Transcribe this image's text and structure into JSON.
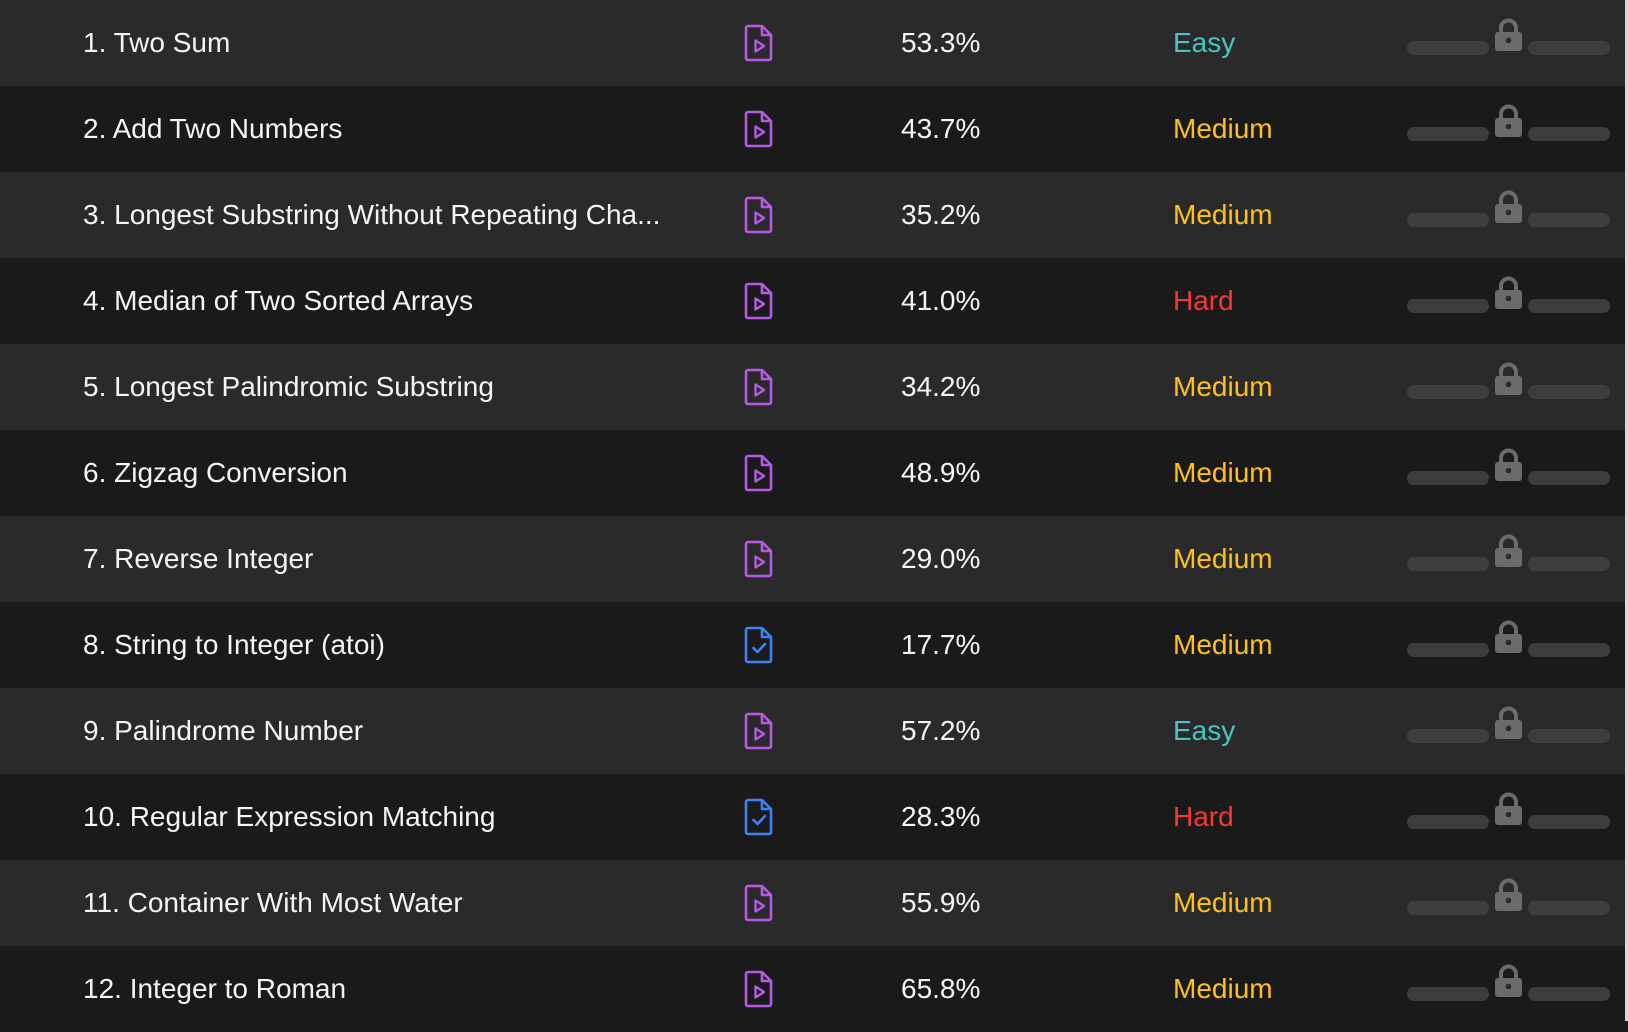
{
  "colors": {
    "easy": "#46c6c2",
    "medium": "#ffc01e",
    "hard": "#f63737",
    "video_solution_icon": "#b65ae6",
    "article_solution_icon": "#3b82f6",
    "lock_icon": "#6b6b6b"
  },
  "problems": [
    {
      "title": "1. Two Sum",
      "solution_icon": "video-solution-icon",
      "acceptance": "53.3%",
      "difficulty": "Easy"
    },
    {
      "title": "2. Add Two Numbers",
      "solution_icon": "video-solution-icon",
      "acceptance": "43.7%",
      "difficulty": "Medium"
    },
    {
      "title": "3. Longest Substring Without Repeating Cha...",
      "solution_icon": "video-solution-icon",
      "acceptance": "35.2%",
      "difficulty": "Medium"
    },
    {
      "title": "4. Median of Two Sorted Arrays",
      "solution_icon": "video-solution-icon",
      "acceptance": "41.0%",
      "difficulty": "Hard"
    },
    {
      "title": "5. Longest Palindromic Substring",
      "solution_icon": "video-solution-icon",
      "acceptance": "34.2%",
      "difficulty": "Medium"
    },
    {
      "title": "6. Zigzag Conversion",
      "solution_icon": "video-solution-icon",
      "acceptance": "48.9%",
      "difficulty": "Medium"
    },
    {
      "title": "7. Reverse Integer",
      "solution_icon": "video-solution-icon",
      "acceptance": "29.0%",
      "difficulty": "Medium"
    },
    {
      "title": "8. String to Integer (atoi)",
      "solution_icon": "article-solution-icon",
      "acceptance": "17.7%",
      "difficulty": "Medium"
    },
    {
      "title": "9. Palindrome Number",
      "solution_icon": "video-solution-icon",
      "acceptance": "57.2%",
      "difficulty": "Easy"
    },
    {
      "title": "10. Regular Expression Matching",
      "solution_icon": "article-solution-icon",
      "acceptance": "28.3%",
      "difficulty": "Hard"
    },
    {
      "title": "11. Container With Most Water",
      "solution_icon": "video-solution-icon",
      "acceptance": "55.9%",
      "difficulty": "Medium"
    },
    {
      "title": "12. Integer to Roman",
      "solution_icon": "video-solution-icon",
      "acceptance": "65.8%",
      "difficulty": "Medium"
    }
  ]
}
